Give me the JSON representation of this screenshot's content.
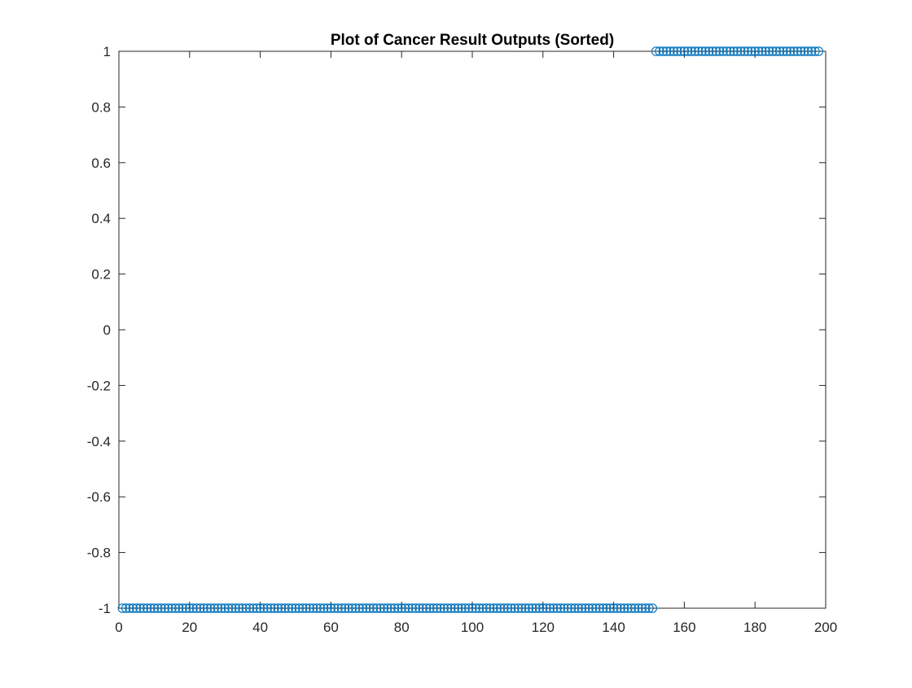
{
  "chart_data": {
    "type": "scatter",
    "title": "Plot of Cancer Result Outputs (Sorted)",
    "xlabel": "",
    "ylabel": "",
    "xlim": [
      0,
      200
    ],
    "ylim": [
      -1,
      1
    ],
    "xticks": [
      0,
      20,
      40,
      60,
      80,
      100,
      120,
      140,
      160,
      180,
      200
    ],
    "yticks": [
      -1,
      -0.8,
      -0.6,
      -0.4,
      -0.2,
      0,
      0.2,
      0.4,
      0.6,
      0.8,
      1
    ],
    "grid": false,
    "marker": "circle-open",
    "marker_color": "#0072BD",
    "axis_color": "#262626",
    "series": [
      {
        "segments": [
          {
            "x_start": 1,
            "x_end": 151,
            "y": -1
          },
          {
            "x_start": 152,
            "x_end": 198,
            "y": 1
          }
        ]
      }
    ]
  }
}
